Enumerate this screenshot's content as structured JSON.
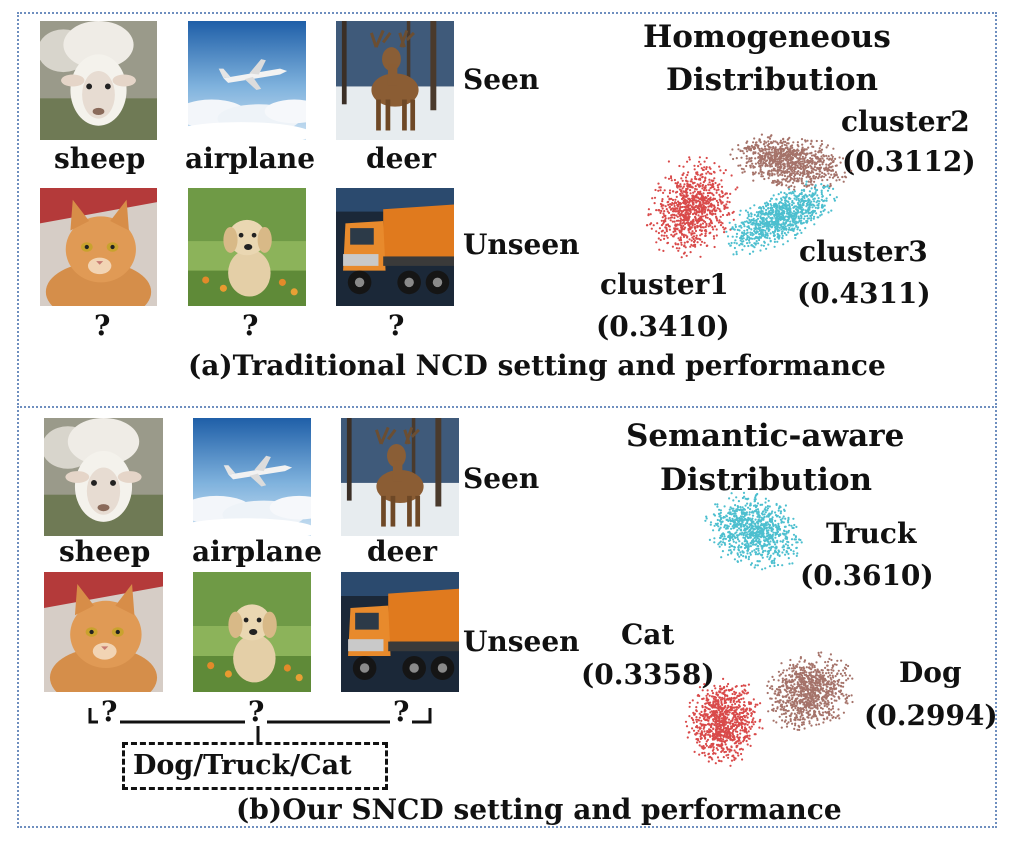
{
  "panel_a": {
    "heading_line1": "Homogeneous",
    "heading_line2": "Distribution",
    "images_seen": [
      {
        "label": "sheep",
        "icon": "sheep-photo"
      },
      {
        "label": "airplane",
        "icon": "airplane-photo"
      },
      {
        "label": "deer",
        "icon": "deer-photo"
      }
    ],
    "images_unseen": [
      {
        "label": "?",
        "icon": "cat-photo"
      },
      {
        "label": "?",
        "icon": "dog-photo"
      },
      {
        "label": "?",
        "icon": "truck-photo"
      }
    ],
    "row_seen": "Seen",
    "row_unseen": "Unseen",
    "clusters": [
      {
        "name": "cluster1",
        "score": "(0.3410)",
        "color": "#d94a4a"
      },
      {
        "name": "cluster2",
        "score": "(0.3112)",
        "color": "#a5736a"
      },
      {
        "name": "cluster3",
        "score": "(0.4311)",
        "color": "#4dbfcf"
      }
    ],
    "caption": "(a)Traditional  NCD setting and performance"
  },
  "panel_b": {
    "heading_line1": "Semantic-aware",
    "heading_line2": "Distribution",
    "images_seen": [
      {
        "label": "sheep",
        "icon": "sheep-photo"
      },
      {
        "label": "airplane",
        "icon": "airplane-photo"
      },
      {
        "label": "deer",
        "icon": "deer-photo"
      }
    ],
    "images_unseen": [
      {
        "label": "?",
        "icon": "cat-photo"
      },
      {
        "label": "?",
        "icon": "dog-photo"
      },
      {
        "label": "?",
        "icon": "truck-photo"
      }
    ],
    "row_seen": "Seen",
    "row_unseen": "Unseen",
    "candidate_box": "Dog/Truck/Cat",
    "clusters": [
      {
        "name": "Truck",
        "score": "(0.3610)",
        "color": "#4dbfcf"
      },
      {
        "name": "Cat",
        "score": "(0.3358)",
        "color": "#d94a4a"
      },
      {
        "name": "Dog",
        "score": "(0.2994)",
        "color": "#a5736a"
      }
    ],
    "caption": "(b)Our  SNCD setting and performance"
  }
}
